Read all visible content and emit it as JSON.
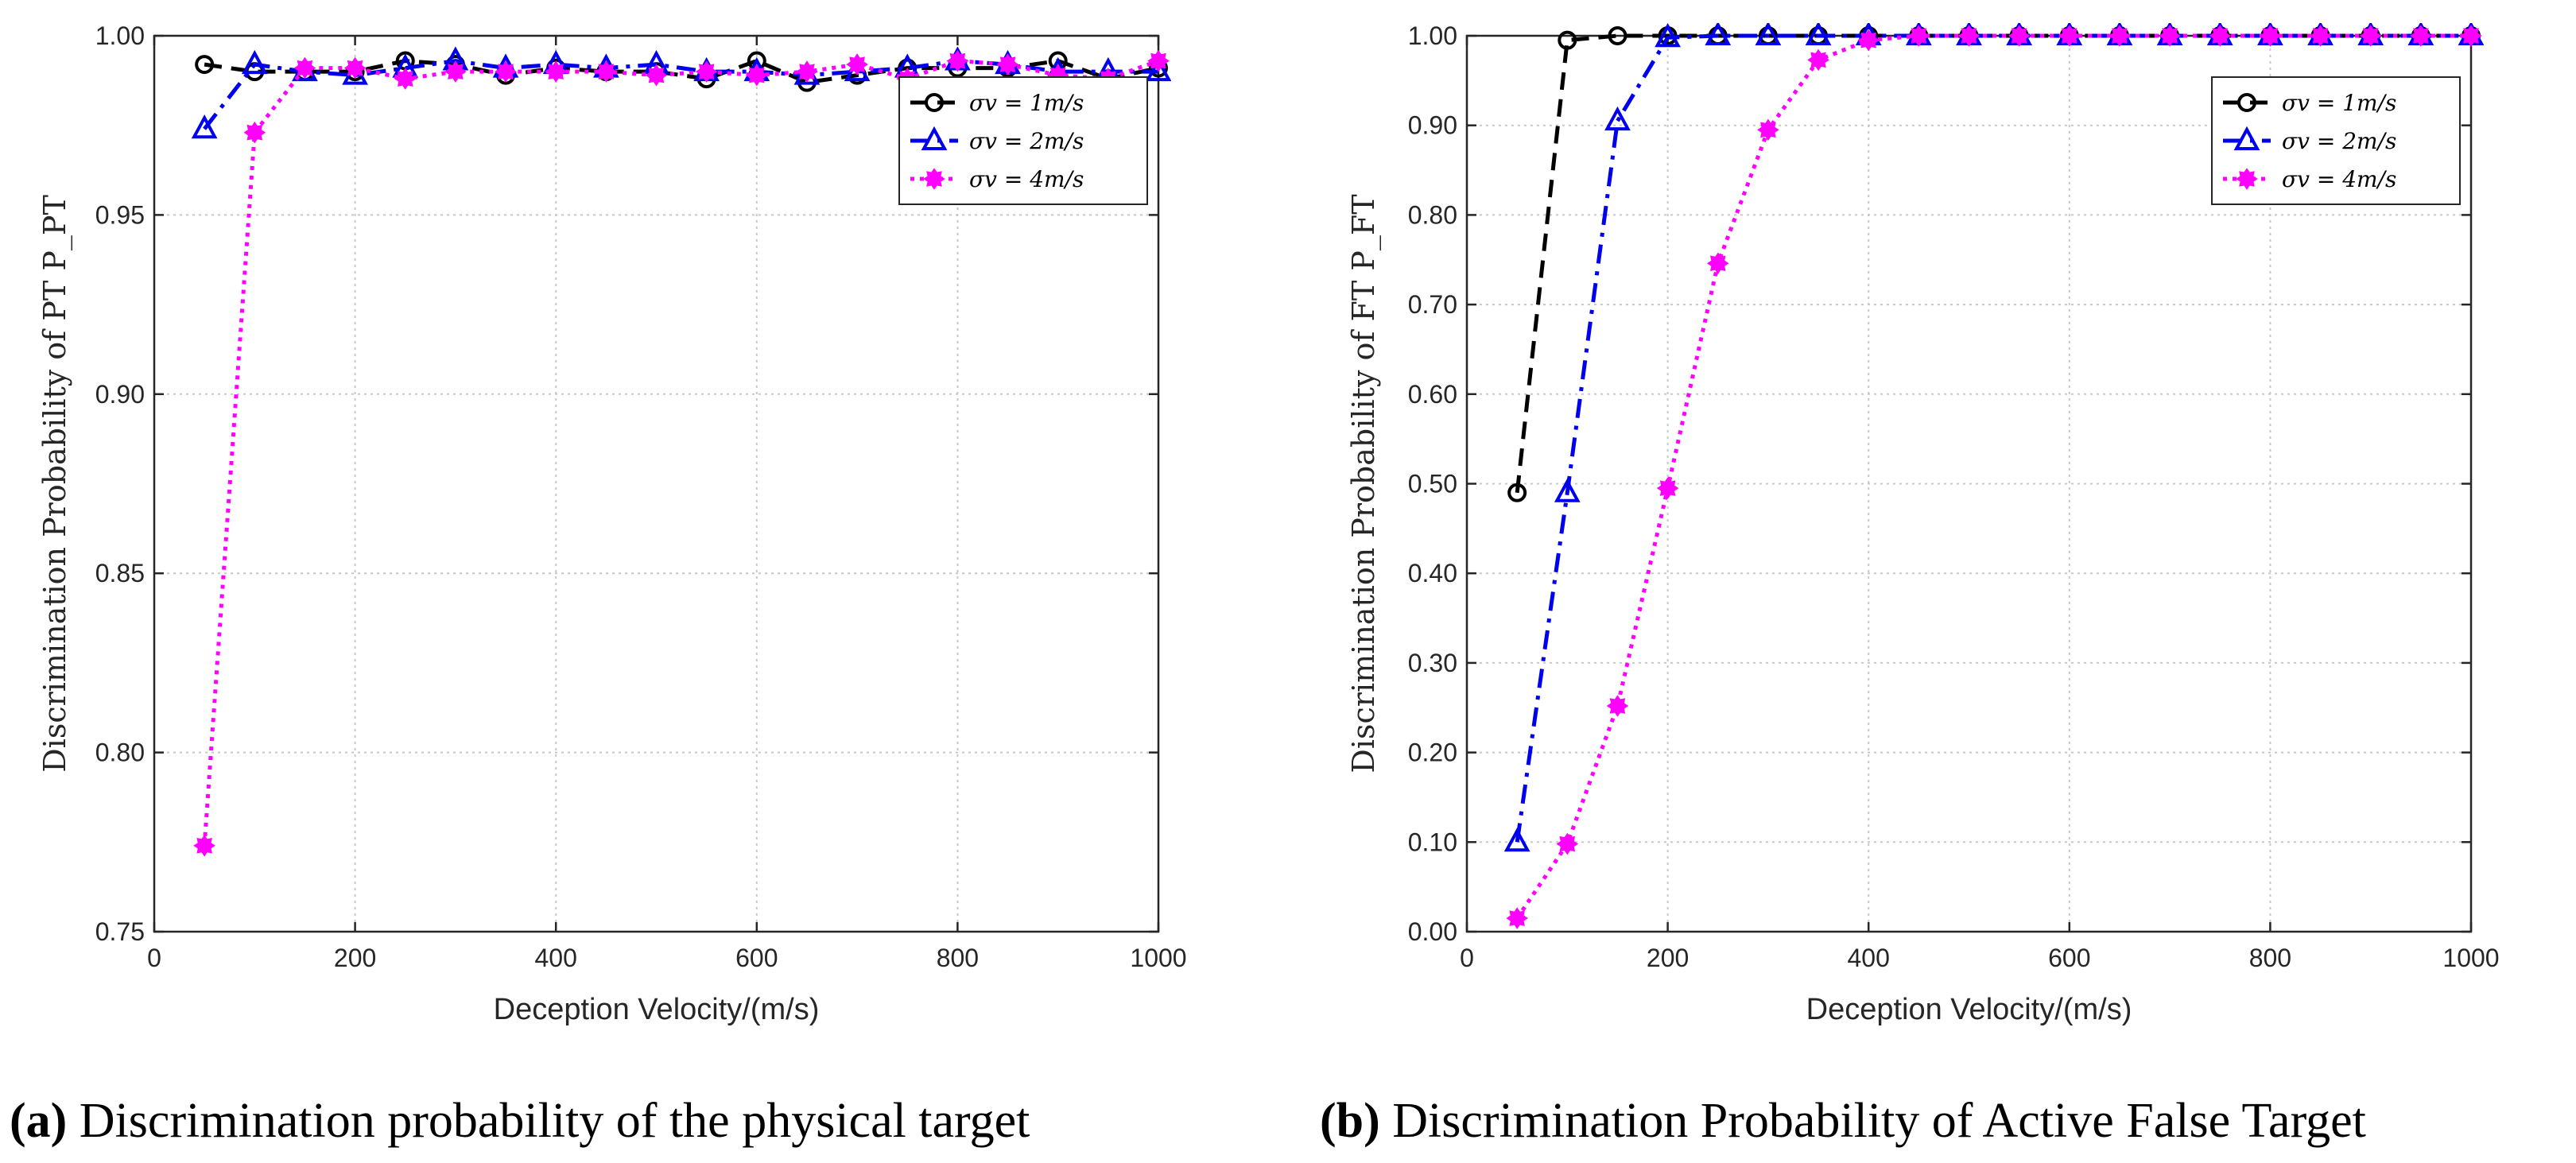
{
  "figure": {
    "captions": [
      {
        "label": "(a)",
        "text": " Discrimination probability of the physical target"
      },
      {
        "label": "(b)",
        "text": " Discrimination Probability of Active False Target"
      }
    ]
  },
  "chart_data": [
    {
      "type": "line",
      "title": "",
      "xlabel": "Deception Velocity/(m/s)",
      "ylabel": "Discrimination Probability of PT P_PT",
      "xlim": [
        0,
        1000
      ],
      "ylim": [
        0.75,
        1.0
      ],
      "xticks": [
        0,
        200,
        400,
        600,
        800,
        1000
      ],
      "xtick_labels": [
        "0",
        "200",
        "400",
        "600",
        "800",
        "1000"
      ],
      "yticks": [
        0.75,
        0.8,
        0.85,
        0.9,
        0.95,
        1.0
      ],
      "ytick_labels": [
        "0.75",
        "0.80",
        "0.85",
        "0.90",
        "0.95",
        "1.00"
      ],
      "grid": true,
      "legend_position": "top-right",
      "x": [
        50,
        100,
        150,
        200,
        250,
        300,
        350,
        400,
        450,
        500,
        550,
        600,
        650,
        700,
        750,
        800,
        850,
        900,
        950,
        1000
      ],
      "series": [
        {
          "name": "σv = 1m/s",
          "color": "#000000",
          "marker": "circle",
          "dash": "dashed",
          "values": [
            0.992,
            0.99,
            0.99,
            0.99,
            0.993,
            0.992,
            0.989,
            0.991,
            0.99,
            0.99,
            0.988,
            0.993,
            0.987,
            0.989,
            0.991,
            0.991,
            0.991,
            0.993,
            0.988,
            0.991
          ]
        },
        {
          "name": "σv = 2m/s",
          "color": "#0000ee",
          "marker": "triangle",
          "dash": "dashdot",
          "values": [
            0.974,
            0.992,
            0.99,
            0.989,
            0.991,
            0.993,
            0.991,
            0.992,
            0.991,
            0.992,
            0.99,
            0.99,
            0.989,
            0.99,
            0.991,
            0.993,
            0.992,
            0.99,
            0.99,
            0.99
          ]
        },
        {
          "name": "σv = 4m/s",
          "color": "#ff00ff",
          "marker": "star",
          "dash": "dotted",
          "values": [
            0.774,
            0.973,
            0.991,
            0.991,
            0.988,
            0.99,
            0.99,
            0.99,
            0.99,
            0.989,
            0.99,
            0.989,
            0.99,
            0.992,
            0.988,
            0.993,
            0.992,
            0.989,
            0.988,
            0.993
          ]
        }
      ]
    },
    {
      "type": "line",
      "title": "",
      "xlabel": "Deception Velocity/(m/s)",
      "ylabel": "Discrimination Probability of FT P_FT",
      "xlim": [
        0,
        1000
      ],
      "ylim": [
        0,
        1.0
      ],
      "xticks": [
        0,
        200,
        400,
        600,
        800,
        1000
      ],
      "xtick_labels": [
        "0",
        "200",
        "400",
        "600",
        "800",
        "1000"
      ],
      "yticks": [
        0,
        0.1,
        0.2,
        0.3,
        0.4,
        0.5,
        0.6,
        0.7,
        0.8,
        0.9,
        1.0
      ],
      "ytick_labels": [
        "0.00",
        "0.10",
        "0.20",
        "0.30",
        "0.40",
        "0.50",
        "0.60",
        "0.70",
        "0.80",
        "0.90",
        "1.00"
      ],
      "grid": true,
      "legend_position": "top-right",
      "x": [
        50,
        100,
        150,
        200,
        250,
        300,
        350,
        400,
        450,
        500,
        550,
        600,
        650,
        700,
        750,
        800,
        850,
        900,
        950,
        1000
      ],
      "series": [
        {
          "name": "σv = 1m/s",
          "color": "#000000",
          "marker": "circle",
          "dash": "dashed",
          "values": [
            0.49,
            0.995,
            1.0,
            1.0,
            1.0,
            1.0,
            1.0,
            1.0,
            1.0,
            1.0,
            1.0,
            1.0,
            1.0,
            1.0,
            1.0,
            1.0,
            1.0,
            1.0,
            1.0,
            1.0
          ]
        },
        {
          "name": "σv = 2m/s",
          "color": "#0000ee",
          "marker": "triangle",
          "dash": "dashdot",
          "values": [
            0.1,
            0.49,
            0.905,
            0.998,
            1.0,
            1.0,
            1.0,
            1.0,
            1.0,
            1.0,
            1.0,
            1.0,
            1.0,
            1.0,
            1.0,
            1.0,
            1.0,
            1.0,
            1.0,
            1.0
          ]
        },
        {
          "name": "σv = 4m/s",
          "color": "#ff00ff",
          "marker": "star",
          "dash": "dotted",
          "values": [
            0.015,
            0.098,
            0.252,
            0.495,
            0.746,
            0.895,
            0.973,
            0.995,
            1.0,
            1.0,
            1.0,
            1.0,
            1.0,
            1.0,
            1.0,
            1.0,
            1.0,
            1.0,
            1.0,
            1.0
          ]
        }
      ]
    }
  ]
}
